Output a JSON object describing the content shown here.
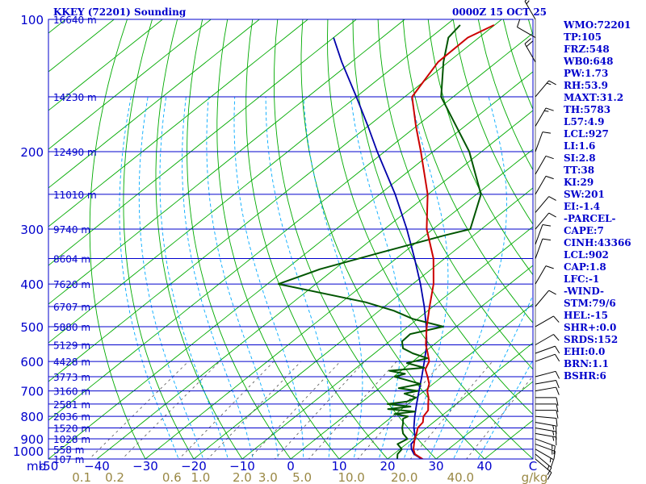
{
  "header": {
    "station": "KKEY (72201) Sounding",
    "time": "0000Z 15 OCT 25"
  },
  "colors": {
    "border": "#0000cc",
    "isobar": "#0000cc",
    "isotherm": "#00aa00",
    "dry_adiabat": "#00aa00",
    "moist_adiabat": "#00aaff",
    "mixing_ratio": "#555555",
    "temperature": "#cc0000",
    "dewpoint": "#005500",
    "parcel": "#0000aa"
  },
  "chart_data": {
    "type": "line",
    "diagram": "skew-T log-P",
    "x_axis": {
      "min": -50,
      "max": 50,
      "unit": "C",
      "ticks": [
        -50,
        -40,
        -30,
        -20,
        -10,
        0,
        10,
        20,
        30,
        40,
        50
      ],
      "tick_labels": [
        "-50",
        "−40",
        "−30",
        "−20",
        "−10",
        "0",
        "10",
        "20",
        "30",
        "40",
        "C"
      ],
      "corner_label": "mb"
    },
    "y_axis": {
      "scale": "log",
      "unit": "mb",
      "min": 100,
      "max": 1000,
      "ticks": [
        100,
        200,
        300,
        400,
        500,
        600,
        700,
        800,
        900,
        1000
      ],
      "tick_labels": [
        "100",
        "200",
        "300",
        "400",
        "500",
        "600",
        "700",
        "800",
        "900",
        "1000"
      ]
    },
    "height_labels": [
      {
        "p": 100,
        "label": "16640 m"
      },
      {
        "p": 150,
        "label": "14230 m"
      },
      {
        "p": 200,
        "label": "12490 m"
      },
      {
        "p": 250,
        "label": "11010 m"
      },
      {
        "p": 300,
        "label": "9740 m"
      },
      {
        "p": 350,
        "label": "8604 m"
      },
      {
        "p": 400,
        "label": "7620 m"
      },
      {
        "p": 450,
        "label": "6707 m"
      },
      {
        "p": 500,
        "label": "5880 m"
      },
      {
        "p": 550,
        "label": "5129 m"
      },
      {
        "p": 600,
        "label": "4428 m"
      },
      {
        "p": 650,
        "label": "3773 m"
      },
      {
        "p": 700,
        "label": "3160 m"
      },
      {
        "p": 750,
        "label": "2581 m"
      },
      {
        "p": 800,
        "label": "2036 m"
      },
      {
        "p": 850,
        "label": "1520 m"
      },
      {
        "p": 900,
        "label": "1028 m"
      },
      {
        "p": 950,
        "label": "558 m"
      },
      {
        "p": 1000,
        "label": "107 m"
      }
    ],
    "mixing_ratio_labels": [
      {
        "value": 0.1,
        "label": "0.1"
      },
      {
        "value": 0.2,
        "label": "0.2"
      },
      {
        "value": 0.6,
        "label": "0.6"
      },
      {
        "value": 1.0,
        "label": "1.0"
      },
      {
        "value": 2.0,
        "label": "2.0"
      },
      {
        "value": 3.0,
        "label": "3.0"
      },
      {
        "value": 5.0,
        "label": "5.0"
      },
      {
        "value": 10.0,
        "label": "10.0"
      },
      {
        "value": 20.0,
        "label": "20.0"
      },
      {
        "value": 40.0,
        "label": "40.0"
      }
    ],
    "mixing_ratio_unit": "g/kg",
    "series": [
      {
        "key": "temperature",
        "points": [
          [
            1011,
            28.5
          ],
          [
            1000,
            27.2
          ],
          [
            975,
            24.4
          ],
          [
            950,
            22.8
          ],
          [
            925,
            21.6
          ],
          [
            900,
            20.4
          ],
          [
            875,
            19.4
          ],
          [
            850,
            18.2
          ],
          [
            825,
            17.8
          ],
          [
            800,
            16.4
          ],
          [
            775,
            15.8
          ],
          [
            750,
            14.2
          ],
          [
            725,
            12.6
          ],
          [
            700,
            10.6
          ],
          [
            675,
            9.2
          ],
          [
            650,
            7.0
          ],
          [
            625,
            4.6
          ],
          [
            600,
            3.4
          ],
          [
            575,
            1.0
          ],
          [
            550,
            -1.6
          ],
          [
            500,
            -6.1
          ],
          [
            450,
            -10.7
          ],
          [
            400,
            -15.7
          ],
          [
            350,
            -22.3
          ],
          [
            300,
            -31.3
          ],
          [
            250,
            -40.1
          ],
          [
            200,
            -52.5
          ],
          [
            175,
            -60.1
          ],
          [
            150,
            -68.5
          ],
          [
            125,
            -72.1
          ],
          [
            110,
            -72.3
          ],
          [
            103,
            -70.1
          ]
        ]
      },
      {
        "key": "dewpoint",
        "points": [
          [
            1011,
            23.0
          ],
          [
            1000,
            22.0
          ],
          [
            975,
            20.8
          ],
          [
            950,
            20.4
          ],
          [
            925,
            18.2
          ],
          [
            900,
            18.9
          ],
          [
            875,
            16.6
          ],
          [
            850,
            15.0
          ],
          [
            830,
            14.0
          ],
          [
            810,
            12.8
          ],
          [
            800,
            13.2
          ],
          [
            790,
            9.8
          ],
          [
            780,
            13.4
          ],
          [
            770,
            7.2
          ],
          [
            760,
            11.2
          ],
          [
            750,
            5.8
          ],
          [
            740,
            9.2
          ],
          [
            725,
            10.0
          ],
          [
            710,
            6.6
          ],
          [
            700,
            8.6
          ],
          [
            690,
            4.0
          ],
          [
            675,
            7.4
          ],
          [
            660,
            3.2
          ],
          [
            650,
            0.2
          ],
          [
            640,
            1.6
          ],
          [
            630,
            -2.4
          ],
          [
            620,
            4.0
          ],
          [
            605,
            -0.8
          ],
          [
            590,
            2.2
          ],
          [
            575,
            -2.1
          ],
          [
            560,
            -5.4
          ],
          [
            540,
            -7.4
          ],
          [
            520,
            -7.6
          ],
          [
            500,
            -2.7
          ],
          [
            480,
            -11.0
          ],
          [
            460,
            -17.0
          ],
          [
            440,
            -25.0
          ],
          [
            400,
            -47.7
          ],
          [
            370,
            -43.0
          ],
          [
            340,
            -35.0
          ],
          [
            310,
            -26.0
          ],
          [
            300,
            -22.3
          ],
          [
            250,
            -29.1
          ],
          [
            200,
            -42.5
          ],
          [
            150,
            -62.5
          ],
          [
            125,
            -71.0
          ],
          [
            110,
            -76.3
          ],
          [
            103,
            -77.1
          ]
        ]
      },
      {
        "key": "parcel",
        "points": [
          [
            1000,
            27.0
          ],
          [
            975,
            24.2
          ],
          [
            950,
            22.4
          ],
          [
            925,
            21.0
          ],
          [
            902,
            20.6
          ],
          [
            875,
            19.0
          ],
          [
            850,
            17.4
          ],
          [
            800,
            14.6
          ],
          [
            750,
            11.8
          ],
          [
            700,
            8.9
          ],
          [
            650,
            5.8
          ],
          [
            600,
            2.4
          ],
          [
            550,
            -1.4
          ],
          [
            500,
            -6.2
          ],
          [
            450,
            -11.8
          ],
          [
            400,
            -18.4
          ],
          [
            350,
            -26.2
          ],
          [
            300,
            -35.4
          ],
          [
            250,
            -46.8
          ],
          [
            200,
            -61.5
          ],
          [
            175,
            -70.0
          ],
          [
            150,
            -80.0
          ],
          [
            125,
            -92.0
          ],
          [
            110,
            -100.0
          ]
        ]
      }
    ],
    "wind_barbs": [
      {
        "p": 1000,
        "dir": 130,
        "kt": 10
      },
      {
        "p": 975,
        "dir": 130,
        "kt": 15
      },
      {
        "p": 950,
        "dir": 120,
        "kt": 15
      },
      {
        "p": 925,
        "dir": 110,
        "kt": 15
      },
      {
        "p": 900,
        "dir": 110,
        "kt": 15
      },
      {
        "p": 875,
        "dir": 100,
        "kt": 15
      },
      {
        "p": 850,
        "dir": 100,
        "kt": 15
      },
      {
        "p": 825,
        "dir": 100,
        "kt": 15
      },
      {
        "p": 800,
        "dir": 95,
        "kt": 10
      },
      {
        "p": 775,
        "dir": 90,
        "kt": 10
      },
      {
        "p": 750,
        "dir": 90,
        "kt": 10
      },
      {
        "p": 725,
        "dir": 90,
        "kt": 10
      },
      {
        "p": 700,
        "dir": 80,
        "kt": 10
      },
      {
        "p": 675,
        "dir": 80,
        "kt": 10
      },
      {
        "p": 650,
        "dir": 75,
        "kt": 10
      },
      {
        "p": 600,
        "dir": 70,
        "kt": 10
      },
      {
        "p": 575,
        "dir": 70,
        "kt": 10
      },
      {
        "p": 550,
        "dir": 60,
        "kt": 10
      },
      {
        "p": 500,
        "dir": 60,
        "kt": 10
      },
      {
        "p": 450,
        "dir": 40,
        "kt": 10
      },
      {
        "p": 400,
        "dir": 30,
        "kt": 10
      },
      {
        "p": 350,
        "dir": 20,
        "kt": 10
      },
      {
        "p": 325,
        "dir": 20,
        "kt": 10
      },
      {
        "p": 300,
        "dir": 40,
        "kt": 10
      },
      {
        "p": 275,
        "dir": 40,
        "kt": 10
      },
      {
        "p": 250,
        "dir": 30,
        "kt": 10
      },
      {
        "p": 225,
        "dir": 30,
        "kt": 10
      },
      {
        "p": 200,
        "dir": 20,
        "kt": 10
      },
      {
        "p": 175,
        "dir": 30,
        "kt": 15
      },
      {
        "p": 150,
        "dir": 40,
        "kt": 15
      },
      {
        "p": 125,
        "dir": 330,
        "kt": 20
      },
      {
        "p": 110,
        "dir": 300,
        "kt": 10
      },
      {
        "p": 100,
        "dir": 330,
        "kt": 15
      }
    ],
    "grid": true
  },
  "indices": [
    "WMO:72201",
    "TP:105",
    "FRZ:548",
    "WB0:648",
    "PW:1.73",
    "RH:53.9",
    "MAXT:31.2",
    "TH:5783",
    "L57:4.9",
    "LCL:927",
    "LI:1.6",
    "SI:2.8",
    "TT:38",
    "KI:29",
    "SW:201",
    "EI:-1.4",
    "-PARCEL-",
    "CAPE:7",
    "CINH:43366",
    "LCL:902",
    "CAP:1.8",
    "LFC:-1",
    "-WIND-",
    "STM:79/6",
    "HEL:-15",
    "SHR+:0.0",
    "SRDS:152",
    "EHI:0.0",
    "BRN:1.1",
    "BSHR:6"
  ]
}
